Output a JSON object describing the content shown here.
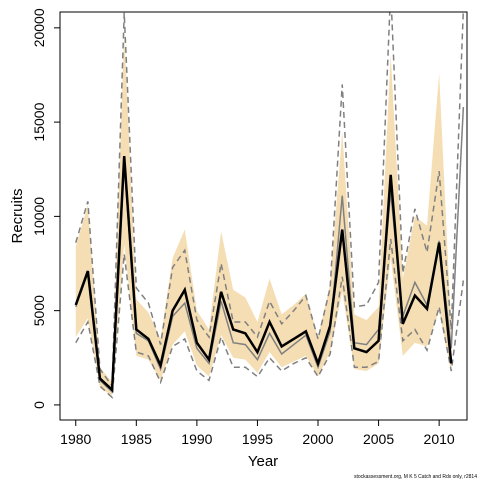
{
  "chart_data": {
    "type": "line",
    "xlabel": "Year",
    "ylabel": "Recruits",
    "annotation": "stockassessment.org, M K 5 Catch and Rdx only, r2814",
    "x": [
      1980,
      1981,
      1982,
      1983,
      1984,
      1985,
      1986,
      1987,
      1988,
      1989,
      1990,
      1991,
      1992,
      1993,
      1994,
      1995,
      1996,
      1997,
      1998,
      1999,
      2000,
      2001,
      2002,
      2003,
      2004,
      2005,
      2006,
      2007,
      2008,
      2009,
      2010,
      2011,
      2012
    ],
    "band": {
      "color": "#f5deb3",
      "upper": [
        8400,
        10600,
        2000,
        1200,
        19800,
        5600,
        4900,
        3500,
        7800,
        9300,
        5000,
        4000,
        9200,
        6100,
        5700,
        4400,
        6700,
        4800,
        5300,
        5900,
        3600,
        6400,
        14500,
        4800,
        4500,
        5200,
        18600,
        6700,
        10000,
        9500,
        17600,
        4000,
        null
      ],
      "lower": [
        3600,
        4600,
        900,
        500,
        8500,
        2600,
        2400,
        1300,
        3200,
        3900,
        2100,
        1500,
        3700,
        2500,
        2400,
        1700,
        2800,
        2000,
        2300,
        2600,
        1500,
        2800,
        6000,
        1900,
        1800,
        2200,
        7800,
        2600,
        3300,
        3100,
        5000,
        1700,
        null
      ]
    },
    "series": [
      {
        "color": "#808080",
        "style": "dashed",
        "values": [
          8600,
          10800,
          1900,
          1000,
          20800,
          6200,
          5400,
          3200,
          7300,
          8200,
          4500,
          3600,
          7500,
          4400,
          4400,
          3600,
          5500,
          4300,
          5000,
          5800,
          3500,
          6200,
          17000,
          5200,
          5300,
          6500,
          22000,
          7000,
          10400,
          8100,
          12400,
          4000,
          21000
        ]
      },
      {
        "color": "#808080",
        "style": "dashed",
        "values": [
          3300,
          4400,
          1000,
          400,
          8000,
          2800,
          2600,
          1200,
          3100,
          3500,
          1800,
          1300,
          3600,
          2000,
          2000,
          1500,
          2500,
          1800,
          2200,
          2500,
          1500,
          2700,
          6800,
          2000,
          2000,
          2300,
          8800,
          3400,
          4000,
          2900,
          5200,
          1800,
          6600
        ]
      },
      {
        "color": "#808080",
        "style": "solid",
        "values": [
          5200,
          7000,
          1300,
          700,
          12800,
          3800,
          3400,
          1900,
          4700,
          5400,
          3000,
          2200,
          5500,
          3300,
          3200,
          2400,
          3800,
          2700,
          3200,
          3700,
          2000,
          3900,
          11100,
          3300,
          3200,
          4000,
          11300,
          4700,
          6500,
          5300,
          8700,
          3000,
          15800
        ]
      },
      {
        "color": "#000000",
        "style": "bold",
        "values": [
          5300,
          7100,
          1400,
          800,
          13200,
          4000,
          3500,
          2100,
          5000,
          6100,
          3300,
          2400,
          6000,
          4000,
          3800,
          2800,
          4400,
          3100,
          3500,
          3900,
          2200,
          4200,
          9300,
          3000,
          2800,
          3400,
          12200,
          4300,
          5800,
          5100,
          8600,
          2200,
          null
        ]
      }
    ],
    "xlim": [
      1978.7,
      2012.3
    ],
    "ylim": [
      -800,
      20840
    ],
    "xticks": [
      1980,
      1985,
      1990,
      1995,
      2000,
      2005,
      2010
    ],
    "yticks": [
      0,
      5000,
      10000,
      15000,
      20000
    ]
  }
}
